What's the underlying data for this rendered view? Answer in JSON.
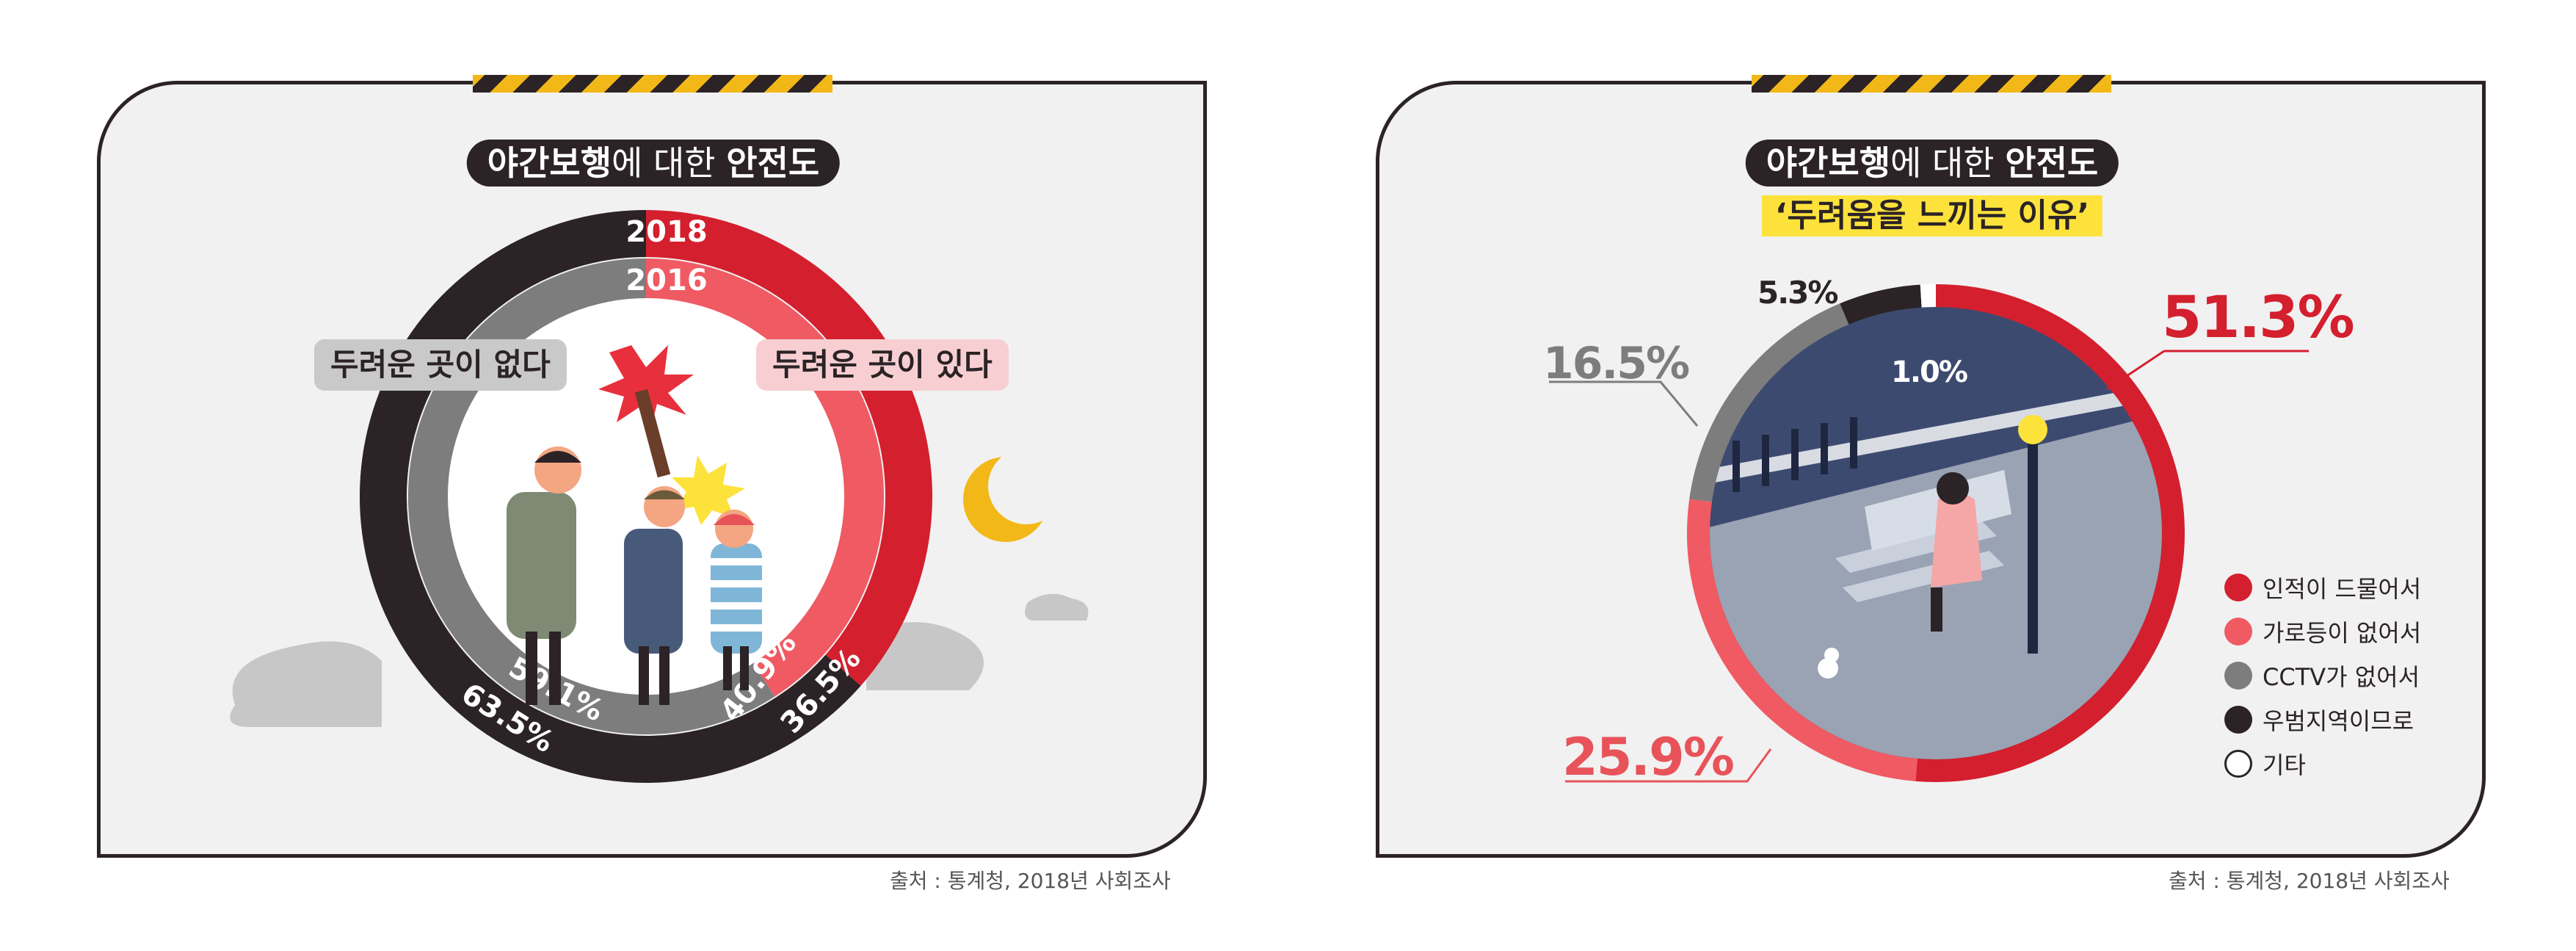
{
  "colors": {
    "red": "#d41f2e",
    "pink": "#f05a63",
    "gray": "#7d7d7d",
    "dark": "#2b2326",
    "white": "#ffffff",
    "yellow_highlight": "#fde23c"
  },
  "left": {
    "title_bold_1": "야간보행",
    "title_light": "에 대한 ",
    "title_bold_2": "안전도",
    "year_2018": "2018",
    "year_2016": "2016",
    "label_no_fear": "두려운 곳이 없다",
    "label_fear": "두려운 곳이 있다",
    "source": "출처 : 통계청, 2018년 사회조사"
  },
  "right": {
    "title_bold_1": "야간보행",
    "title_light": "에 대한 ",
    "title_bold_2": "안전도",
    "subtitle": "‘두려움을 느끼는 이유’",
    "source": "출처 : 통계청, 2018년 사회조사"
  },
  "chart_data": [
    {
      "type": "pie",
      "title": "야간보행에 대한 안전도",
      "series": [
        {
          "name": "2018",
          "categories": [
            "두려운 곳이 없다",
            "두려운 곳이 있다"
          ],
          "values": [
            63.5,
            36.5
          ],
          "labels": [
            "63.5%",
            "36.5%"
          ]
        },
        {
          "name": "2016",
          "categories": [
            "두려운 곳이 없다",
            "두려운 곳이 있다"
          ],
          "values": [
            59.1,
            40.9
          ],
          "labels": [
            "59.1%",
            "40.9%"
          ]
        }
      ]
    },
    {
      "type": "pie",
      "title": "야간보행에 대한 안전도 ‘두려움을 느끼는 이유’",
      "categories": [
        "인적이 드물어서",
        "가로등이 없어서",
        "CCTV가 없어서",
        "우범지역이므로",
        "기타"
      ],
      "values": [
        51.3,
        25.9,
        16.5,
        5.3,
        1.0
      ],
      "labels": [
        "51.3%",
        "25.9%",
        "16.5%",
        "5.3%",
        "1.0%"
      ],
      "legend": "right"
    }
  ]
}
